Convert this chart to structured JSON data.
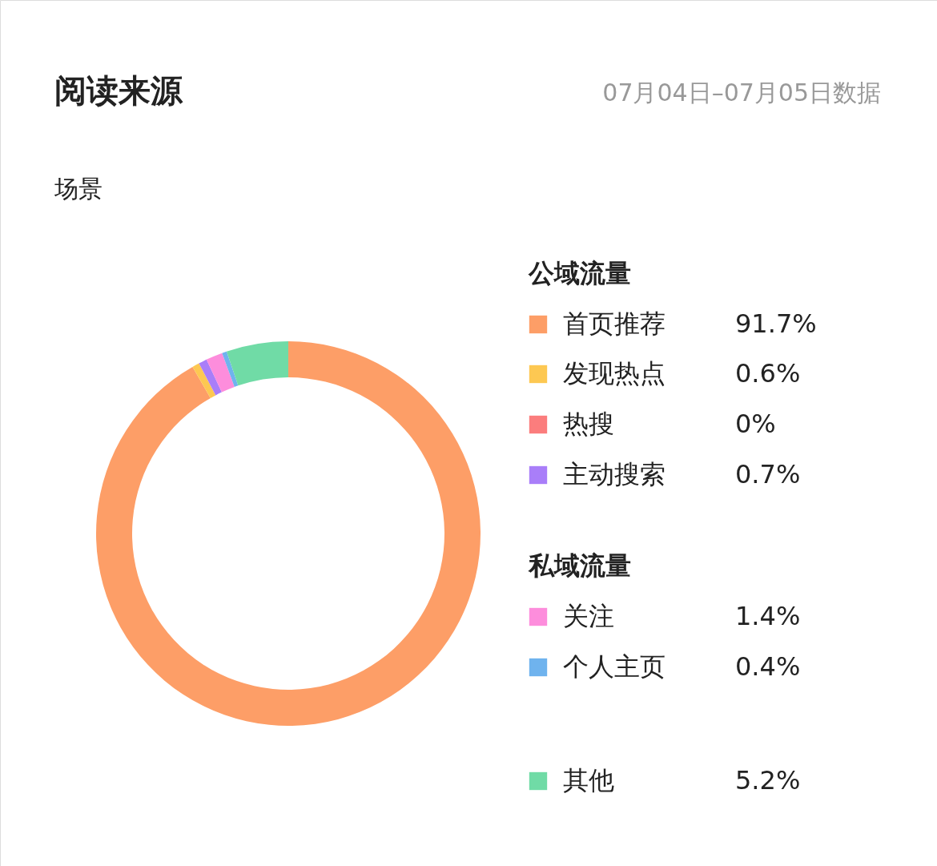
{
  "chart_data": {
    "type": "donut",
    "title": "阅读来源",
    "subtitle": "07月04日–07月05日数据",
    "annotations": [
      "场景",
      "公域流量",
      "私域流量"
    ],
    "categories": [
      "首页推荐",
      "发现热点",
      "热搜",
      "主动搜索",
      "关注",
      "个人主页",
      "其他"
    ],
    "values": [
      91.7,
      0.6,
      0,
      0.7,
      1.4,
      0.4,
      5.2
    ],
    "value_labels": [
      "91.7%",
      "0.6%",
      "0%",
      "0.7%",
      "1.4%",
      "0.4%",
      "5.2%"
    ],
    "colors": [
      "#fd9e67",
      "#fdc852",
      "#fb7d7d",
      "#a97ef9",
      "#fd8ddc",
      "#6fb3ee",
      "#70dba6"
    ],
    "legend": "right"
  }
}
